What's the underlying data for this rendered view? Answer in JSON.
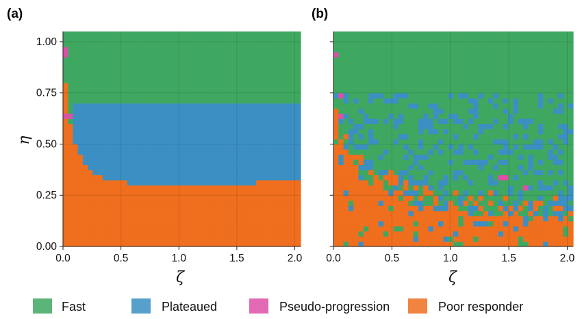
{
  "legend": [
    {
      "key": "fast",
      "label": "Fast",
      "color": "#3fa860"
    },
    {
      "key": "plateaued",
      "label": "Plateaued",
      "color": "#3b8fc3"
    },
    {
      "key": "pseudo",
      "label": "Pseudo-progression",
      "color": "#dd4fa6"
    },
    {
      "key": "poor",
      "label": "Poor responder",
      "color": "#ef6f1e"
    }
  ],
  "chart_data": [
    {
      "type": "heatmap",
      "panel_label": "(a)",
      "xlabel": "ζ",
      "ylabel": "η",
      "xlim": [
        0,
        2.05
      ],
      "ylim": [
        0,
        1.05
      ],
      "xticks": [
        "0.0",
        "0.5",
        "1.0",
        "1.5",
        "2.0"
      ],
      "yticks": [
        "0.00",
        "0.25",
        "0.50",
        "0.75",
        "1.00"
      ],
      "grid": true,
      "categories": [
        "Fast",
        "Plateaued",
        "Pseudo-progression",
        "Poor responder"
      ],
      "regions": {
        "poor_boundary": [
          [
            0.0,
            0.89
          ],
          [
            0.03,
            0.75
          ],
          [
            0.06,
            0.6
          ],
          [
            0.1,
            0.52
          ],
          [
            0.15,
            0.44
          ],
          [
            0.2,
            0.4
          ],
          [
            0.25,
            0.37
          ],
          [
            0.3,
            0.35
          ],
          [
            0.4,
            0.33
          ],
          [
            0.5,
            0.32
          ],
          [
            0.65,
            0.3
          ],
          [
            1.65,
            0.3
          ],
          [
            1.7,
            0.32
          ],
          [
            2.05,
            0.32
          ]
        ],
        "plateaued_band": {
          "zeta_min": 0.1,
          "eta_upper": 0.71,
          "eta_lower_follows": "poor_boundary"
        },
        "pseudo_cells": [
          [
            0.0,
            0.93
          ],
          [
            0.0,
            0.97
          ],
          [
            0.04,
            0.64
          ]
        ]
      }
    },
    {
      "type": "heatmap",
      "panel_label": "(b)",
      "xlabel": "ζ",
      "xlim": [
        0,
        2.05
      ],
      "ylim": [
        0,
        1.05
      ],
      "xticks": [
        "0.0",
        "0.5",
        "1.0",
        "1.5",
        "2.0"
      ],
      "grid": true,
      "categories": [
        "Fast",
        "Plateaued",
        "Pseudo-progression",
        "Poor responder"
      ],
      "regions": {
        "poor_left_boundary": [
          [
            0.0,
            0.88
          ],
          [
            0.03,
            0.6
          ],
          [
            0.08,
            0.5
          ],
          [
            0.15,
            0.42
          ],
          [
            0.25,
            0.34
          ],
          [
            0.4,
            0.28
          ],
          [
            0.6,
            0.22
          ],
          [
            0.9,
            0.18
          ],
          [
            1.3,
            0.15
          ],
          [
            2.05,
            0.12
          ]
        ],
        "mixed_band": {
          "eta_min": 0.0,
          "eta_max": 0.75,
          "note": "Fast / Plateaued / Poor responder scattered cells"
        },
        "pseudo_cells": [
          [
            0.0,
            0.94
          ],
          [
            0.05,
            0.73
          ],
          [
            0.05,
            0.64
          ],
          [
            1.45,
            0.34
          ],
          [
            1.65,
            0.28
          ]
        ]
      }
    }
  ]
}
